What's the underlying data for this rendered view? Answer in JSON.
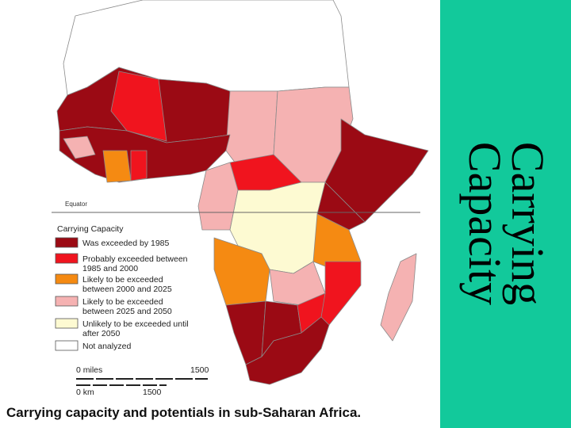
{
  "slide": {
    "title_lines": [
      "Carrying",
      "Capacity"
    ]
  },
  "map": {
    "equator_label": "Equator",
    "legend": {
      "title": "Carrying Capacity",
      "items": [
        {
          "lines": [
            "Was exceeded by 1985"
          ],
          "color": "#9b0a14"
        },
        {
          "lines": [
            "Probably exceeded between",
            "1985 and 2000"
          ],
          "color": "#f0141e"
        },
        {
          "lines": [
            "Likely to be exceeded",
            "between 2000 and 2025"
          ],
          "color": "#f58a12"
        },
        {
          "lines": [
            "Likely to be exceeded",
            "between 2025 and 2050"
          ],
          "color": "#f5b2b2"
        },
        {
          "lines": [
            "Unlikely to be exceeded until",
            "after 2050"
          ],
          "color": "#fdfad2"
        },
        {
          "lines": [
            "Not analyzed"
          ],
          "color": "#ffffff"
        }
      ]
    },
    "scale": {
      "miles": [
        "0 miles",
        "1500"
      ],
      "km": [
        "0 km",
        "1500"
      ]
    }
  },
  "caption": "Carrying capacity and potentials in sub-Saharan Africa."
}
